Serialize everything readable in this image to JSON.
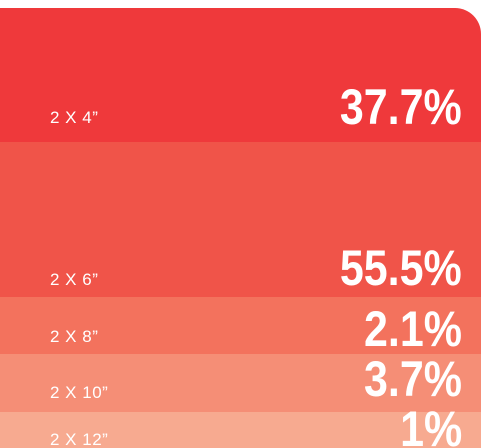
{
  "rows": [
    {
      "label": "2 X 4”",
      "value": "37.7%",
      "color": "#ef393b"
    },
    {
      "label": "2 X 6”",
      "value": "55.5%",
      "color": "#f05449"
    },
    {
      "label": "2 X 8”",
      "value": "2.1%",
      "color": "#f3725d"
    },
    {
      "label": "2 X 10”",
      "value": "3.7%",
      "color": "#f58e76"
    },
    {
      "label": "2 X 12”",
      "value": "1%",
      "color": "#f7aa90"
    }
  ]
}
